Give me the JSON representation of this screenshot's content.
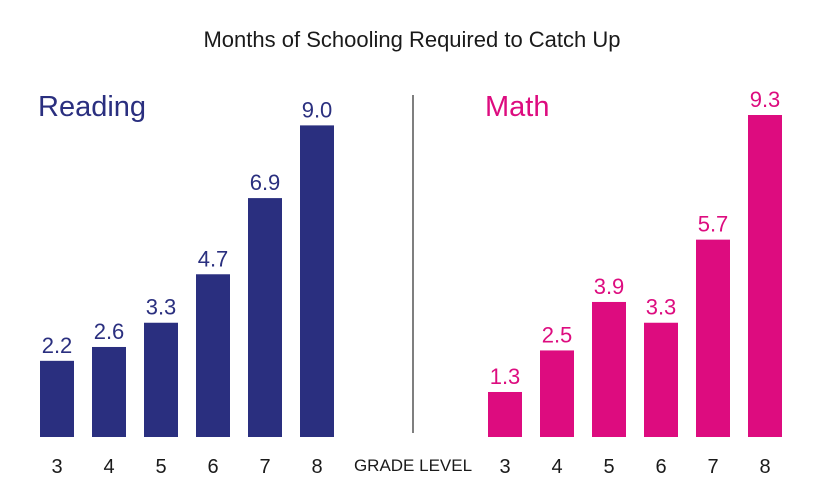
{
  "chart_data": {
    "type": "bar",
    "title": "Months of Schooling Required to Catch Up",
    "xlabel": "GRADE LEVEL",
    "ylabel": "",
    "categories": [
      "3",
      "4",
      "5",
      "6",
      "7",
      "8"
    ],
    "ylim": [
      0,
      9.3
    ],
    "grid": false,
    "legend": "none",
    "series": [
      {
        "name": "Reading",
        "values": [
          2.2,
          2.6,
          3.3,
          4.7,
          6.9,
          9.0
        ],
        "labels": [
          "2.2",
          "2.6",
          "3.3",
          "4.7",
          "6.9",
          "9.0"
        ],
        "color": "#2a2f7f"
      },
      {
        "name": "Math",
        "values": [
          1.3,
          2.5,
          3.9,
          3.3,
          5.7,
          9.3
        ],
        "labels": [
          "1.3",
          "2.5",
          "3.9",
          "3.3",
          "5.7",
          "9.3"
        ],
        "color": "#dd0c7f"
      }
    ],
    "title_color": "#1a1a1a",
    "axis_text_color": "#1a1a1a",
    "divider_color": "#555555"
  }
}
